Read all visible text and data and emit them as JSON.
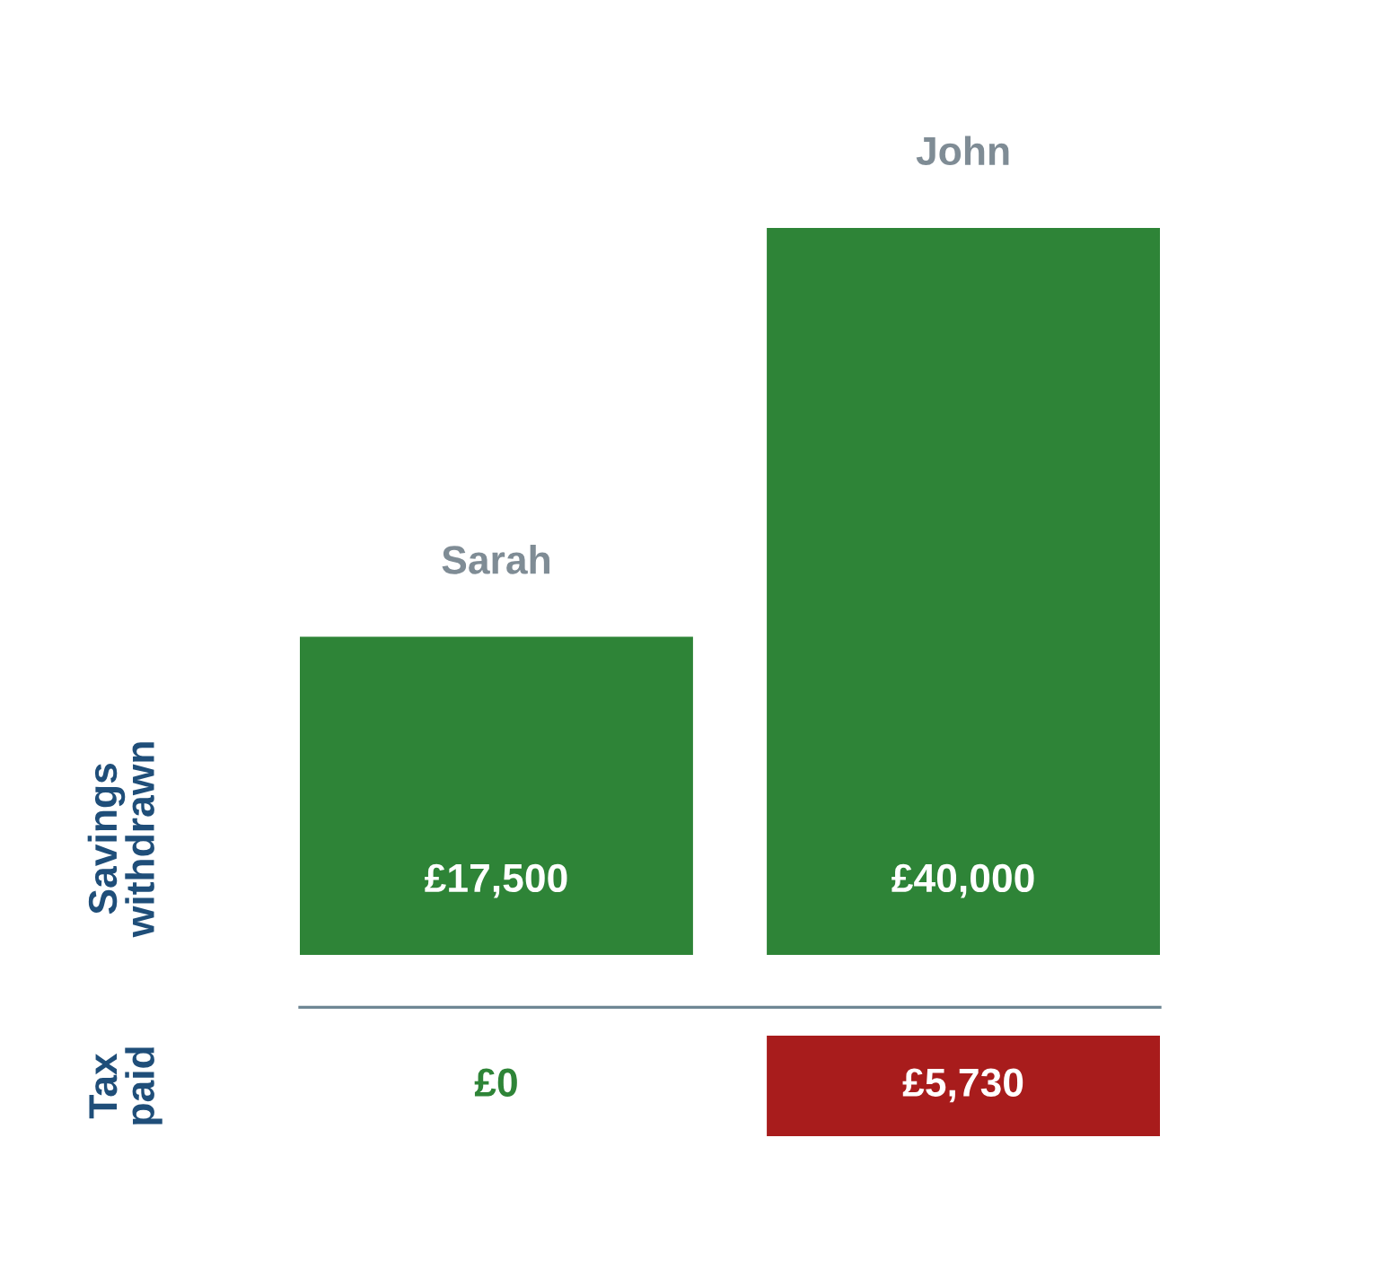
{
  "chart_data": [
    {
      "type": "bar",
      "ylabel": "Savings withdrawn",
      "categories": [
        "Sarah",
        "John"
      ],
      "values": [
        17500,
        40000
      ],
      "colors": [
        "#2e8437",
        "#2e8437"
      ],
      "value_labels": [
        "£17,500",
        "£40,000"
      ]
    },
    {
      "type": "bar",
      "ylabel": "Tax paid",
      "categories": [
        null,
        null
      ],
      "values": [
        0,
        5730
      ],
      "colors": [
        "#2e8437",
        "#a81c1c"
      ],
      "value_labels": [
        "£0",
        "£5,730"
      ]
    }
  ]
}
